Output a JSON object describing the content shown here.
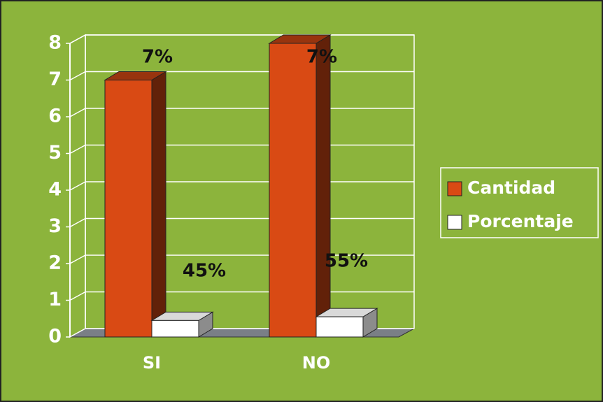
{
  "chart_data": {
    "type": "bar3d",
    "categories": [
      "SI",
      "NO"
    ],
    "series": [
      {
        "name": "Cantidad",
        "color": "#d94a14",
        "values": [
          7,
          8
        ]
      },
      {
        "name": "Porcentaje",
        "color": "#ffffff",
        "values": [
          0.45,
          0.55
        ],
        "value_labels": [
          "45%",
          "55%"
        ]
      }
    ],
    "annotations": [
      "7%",
      "7%"
    ],
    "ylim": [
      0,
      8
    ],
    "yticks": [
      0,
      1,
      2,
      3,
      4,
      5,
      6,
      7,
      8
    ],
    "grid": true,
    "legend": "right"
  }
}
